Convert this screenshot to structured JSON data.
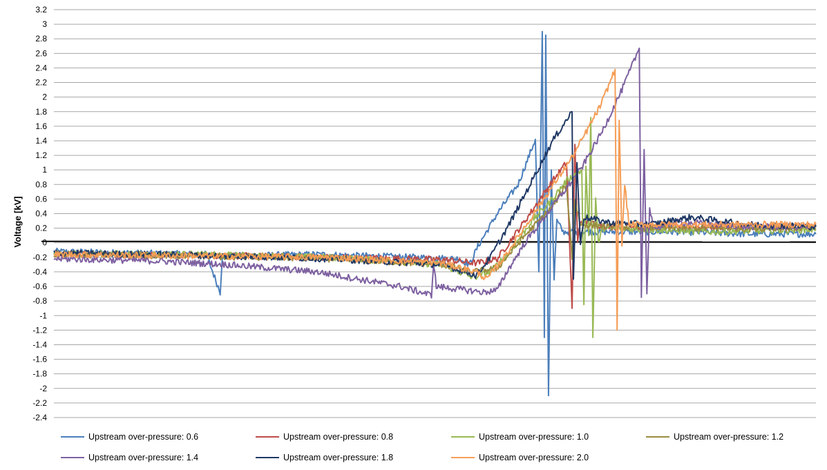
{
  "chart_data": {
    "type": "line",
    "title": "",
    "xlabel": "",
    "ylabel": "Voltage [kV]",
    "ylim": [
      -2.4,
      3.2
    ],
    "ystep": 0.2,
    "ytick_labels": [
      "3.2",
      "3",
      "2.8",
      "2.6",
      "2.4",
      "2.2",
      "2",
      "1.8",
      "1.6",
      "1.4",
      "1.2",
      "1",
      "0.8",
      "0.6",
      "0.4",
      "0.2",
      "0",
      "-0.2",
      "-0.4",
      "-0.6",
      "-0.8",
      "-1",
      "-1.2",
      "-1.4",
      "-1.6",
      "-1.8",
      "-2",
      "-2.2",
      "-2.4"
    ],
    "xlim": [
      0,
      1100
    ],
    "grid": true,
    "legend_position": "bottom",
    "series": [
      {
        "name": "Upstream over-pressure: 0.6",
        "color": "#4a7ebb",
        "points": [
          [
            0,
            -0.12
          ],
          [
            220,
            -0.16
          ],
          [
            240,
            -0.68
          ],
          [
            243,
            -0.18
          ],
          [
            380,
            -0.16
          ],
          [
            520,
            -0.2
          ],
          [
            585,
            -0.22
          ],
          [
            600,
            -0.3
          ],
          [
            612,
            -0.05
          ],
          [
            640,
            0.4
          ],
          [
            670,
            0.8
          ],
          [
            695,
            1.42
          ],
          [
            700,
            -0.4
          ],
          [
            705,
            2.9
          ],
          [
            708,
            -1.3
          ],
          [
            710,
            2.85
          ],
          [
            714,
            -2.1
          ],
          [
            718,
            1.0
          ],
          [
            722,
            -0.5
          ],
          [
            726,
            0.3
          ],
          [
            735,
            0.15
          ],
          [
            800,
            0.15
          ],
          [
            900,
            0.15
          ],
          [
            1000,
            0.12
          ],
          [
            1100,
            0.12
          ]
        ]
      },
      {
        "name": "Upstream over-pressure: 0.8",
        "color": "#be4b48",
        "points": [
          [
            0,
            -0.15
          ],
          [
            200,
            -0.17
          ],
          [
            400,
            -0.2
          ],
          [
            560,
            -0.23
          ],
          [
            610,
            -0.28
          ],
          [
            640,
            -0.22
          ],
          [
            680,
            0.3
          ],
          [
            720,
            0.85
          ],
          [
            740,
            1.1
          ],
          [
            748,
            -0.9
          ],
          [
            752,
            1.35
          ],
          [
            756,
            0.0
          ],
          [
            760,
            0.3
          ],
          [
            800,
            0.22
          ],
          [
            900,
            0.22
          ],
          [
            1000,
            0.22
          ],
          [
            1100,
            0.22
          ]
        ]
      },
      {
        "name": "Upstream over-pressure: 1.0",
        "color": "#98b954",
        "points": [
          [
            0,
            -0.15
          ],
          [
            200,
            -0.16
          ],
          [
            400,
            -0.2
          ],
          [
            560,
            -0.3
          ],
          [
            605,
            -0.48
          ],
          [
            630,
            -0.4
          ],
          [
            660,
            -0.1
          ],
          [
            690,
            0.3
          ],
          [
            715,
            0.55
          ],
          [
            740,
            0.85
          ],
          [
            762,
            1.0
          ],
          [
            765,
            -0.85
          ],
          [
            768,
            1.05
          ],
          [
            772,
            0.1
          ],
          [
            775,
            1.72
          ],
          [
            778,
            -1.3
          ],
          [
            782,
            0.6
          ],
          [
            786,
            0.0
          ],
          [
            792,
            0.2
          ],
          [
            850,
            0.18
          ],
          [
            950,
            0.15
          ],
          [
            1100,
            0.18
          ]
        ]
      },
      {
        "name": "Upstream over-pressure: 1.2",
        "color": "#9a8c3f",
        "points": [
          [
            0,
            -0.16
          ],
          [
            200,
            -0.18
          ],
          [
            400,
            -0.22
          ],
          [
            560,
            -0.3
          ],
          [
            605,
            -0.4
          ],
          [
            640,
            -0.35
          ],
          [
            680,
            0.1
          ],
          [
            720,
            0.5
          ],
          [
            740,
            0.8
          ],
          [
            748,
            -0.2
          ],
          [
            752,
            0.6
          ],
          [
            760,
            0.25
          ],
          [
            800,
            0.22
          ],
          [
            900,
            0.2
          ],
          [
            1000,
            0.2
          ],
          [
            1100,
            0.2
          ]
        ]
      },
      {
        "name": "Upstream over-pressure: 1.4",
        "color": "#7d60a0",
        "points": [
          [
            0,
            -0.22
          ],
          [
            150,
            -0.25
          ],
          [
            250,
            -0.3
          ],
          [
            380,
            -0.4
          ],
          [
            500,
            -0.6
          ],
          [
            545,
            -0.72
          ],
          [
            548,
            -0.28
          ],
          [
            552,
            -0.6
          ],
          [
            620,
            -0.68
          ],
          [
            640,
            -0.65
          ],
          [
            655,
            -0.38
          ],
          [
            680,
            0.0
          ],
          [
            720,
            0.5
          ],
          [
            760,
            1.0
          ],
          [
            790,
            1.5
          ],
          [
            820,
            2.1
          ],
          [
            845,
            2.67
          ],
          [
            848,
            -0.75
          ],
          [
            852,
            1.28
          ],
          [
            856,
            -0.7
          ],
          [
            860,
            0.5
          ],
          [
            866,
            0.2
          ],
          [
            900,
            0.28
          ],
          [
            950,
            0.26
          ],
          [
            1000,
            0.22
          ],
          [
            1100,
            0.22
          ]
        ]
      },
      {
        "name": "Upstream over-pressure: 1.8",
        "color": "#1f3864",
        "points": [
          [
            0,
            -0.14
          ],
          [
            200,
            -0.17
          ],
          [
            400,
            -0.22
          ],
          [
            560,
            -0.3
          ],
          [
            595,
            -0.4
          ],
          [
            610,
            -0.45
          ],
          [
            630,
            -0.2
          ],
          [
            660,
            0.3
          ],
          [
            690,
            0.85
          ],
          [
            720,
            1.4
          ],
          [
            748,
            1.8
          ],
          [
            750,
            -0.5
          ],
          [
            755,
            1.1
          ],
          [
            760,
            0.0
          ],
          [
            765,
            0.35
          ],
          [
            800,
            0.28
          ],
          [
            860,
            0.25
          ],
          [
            920,
            0.35
          ],
          [
            1000,
            0.25
          ],
          [
            1100,
            0.22
          ]
        ]
      },
      {
        "name": "Upstream over-pressure: 2.0",
        "color": "#f59d56",
        "points": [
          [
            0,
            -0.16
          ],
          [
            200,
            -0.18
          ],
          [
            400,
            -0.2
          ],
          [
            560,
            -0.28
          ],
          [
            610,
            -0.4
          ],
          [
            625,
            -0.5
          ],
          [
            650,
            -0.2
          ],
          [
            700,
            0.5
          ],
          [
            750,
            1.2
          ],
          [
            790,
            1.9
          ],
          [
            810,
            2.38
          ],
          [
            813,
            -1.2
          ],
          [
            816,
            1.68
          ],
          [
            820,
            0.0
          ],
          [
            824,
            0.8
          ],
          [
            830,
            0.25
          ],
          [
            900,
            0.25
          ],
          [
            1000,
            0.25
          ],
          [
            1100,
            0.25
          ]
        ]
      }
    ]
  }
}
